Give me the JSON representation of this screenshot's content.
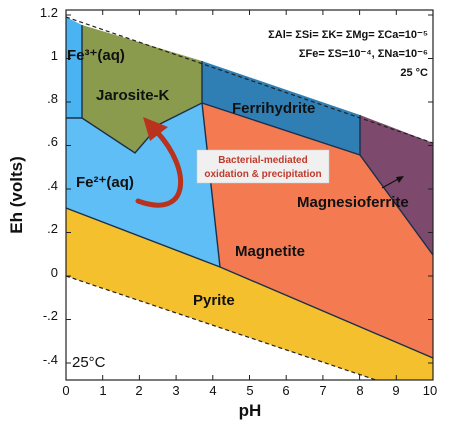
{
  "axes": {
    "x_label": "pH",
    "y_label": "Eh (volts)",
    "x_ticks": [
      "0",
      "1",
      "2",
      "3",
      "4",
      "5",
      "6",
      "7",
      "8",
      "9",
      "10"
    ],
    "y_ticks": [
      "-.4",
      "-.2",
      "0",
      ".2",
      ".4",
      ".6",
      ".8",
      "1",
      "1.2"
    ],
    "x_range": [
      0,
      10
    ],
    "y_range": [
      -0.45,
      1.25
    ]
  },
  "conditions": {
    "line1": "ΣAl= ΣSi= ΣK= ΣMg= ΣCa=10⁻⁵",
    "line2": "ΣFe= ΣS=10⁻⁴, ΣNa=10⁻⁶",
    "line3": "25 °C"
  },
  "temperature_label": "25°C",
  "fields": {
    "fe3": "Fe³⁺(aq)",
    "jarosite": "Jarosite-K",
    "ferrihydrite": "Ferrihydrite",
    "fe2": "Fe²⁺(aq)",
    "magnesioferrite": "Magnesioferrite",
    "magnetite": "Magnetite",
    "pyrite": "Pyrite"
  },
  "annotation": {
    "line1": "Bacterial-mediated",
    "line2": "oxidation & precipitation"
  },
  "colors": {
    "fe3": "#4ab3f2",
    "fe2": "#5ebef5",
    "jarosite": "#8a9b4e",
    "ferrihydrite": "#2f7fb5",
    "magnetite": "#f47a52",
    "magnesioferrite": "#7d4a6e",
    "pyrite": "#f5c02e",
    "arrow": "#b8321e",
    "note_box": "#f0f0f0"
  }
}
